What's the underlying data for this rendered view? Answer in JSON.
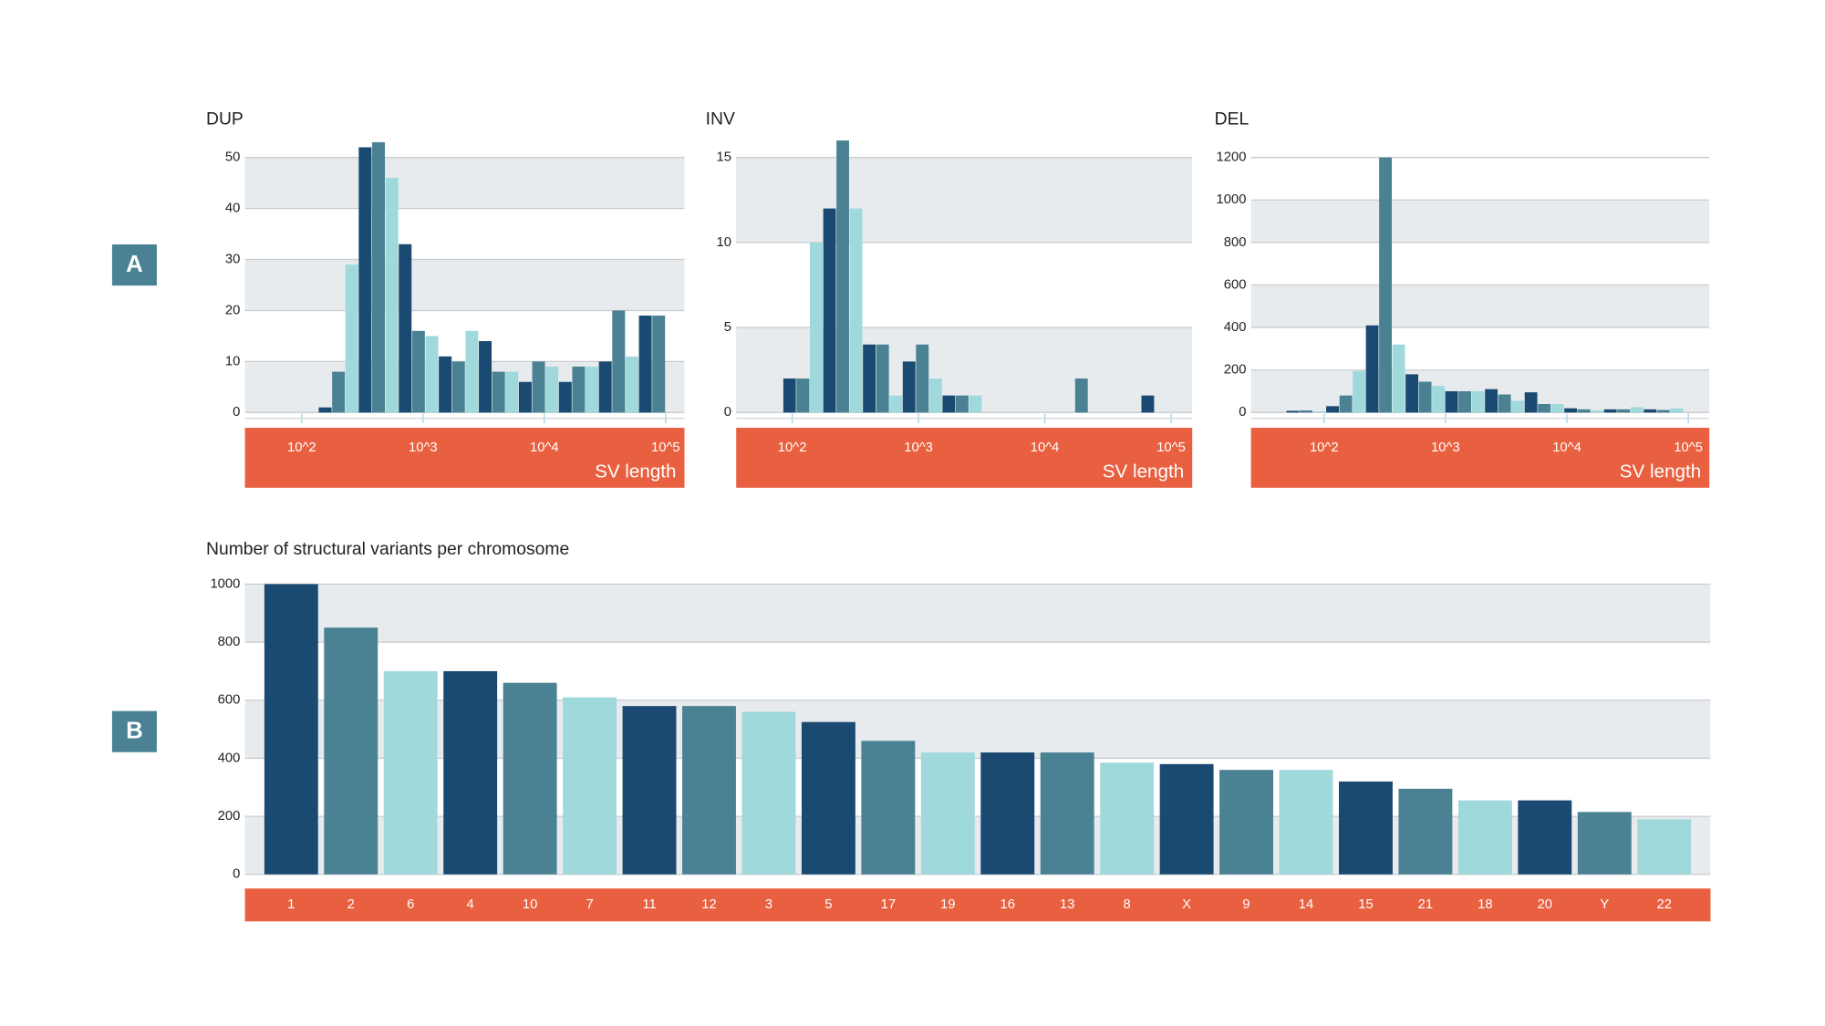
{
  "panels": [
    "A",
    "B"
  ],
  "chart_data": [
    {
      "type": "histogram",
      "title": "DUP",
      "xlabel": "SV length",
      "xscale": "log",
      "bins": [
        138,
        178,
        229,
        295,
        380,
        490,
        631,
        813,
        1047,
        1349,
        1738,
        2239,
        2884,
        3715,
        4786,
        6166,
        7943,
        10233,
        13183,
        16982,
        21878,
        28184,
        36308,
        46774,
        60256,
        77625,
        100000
      ],
      "counts": [
        1,
        8,
        29,
        52,
        53,
        46,
        33,
        16,
        15,
        11,
        10,
        16,
        14,
        8,
        8,
        6,
        10,
        9,
        6,
        9,
        9,
        10,
        20,
        11,
        19,
        19
      ],
      "colors": [
        "#1a4a72",
        "#4a8294",
        "#a0d9dc"
      ],
      "xlim": [
        34,
        143000
      ],
      "xticks": [
        {
          "value": 100,
          "label": "10^2"
        },
        {
          "value": 1000,
          "label": "10^3"
        },
        {
          "value": 10000,
          "label": "10^4"
        },
        {
          "value": 100000,
          "label": "10^5"
        }
      ],
      "ylim": [
        0,
        50
      ],
      "yticks": [
        0,
        10,
        20,
        30,
        40,
        50
      ],
      "grid": true
    },
    {
      "type": "histogram",
      "title": "INV",
      "xlabel": "SV length",
      "xscale": "log",
      "bins": [
        85,
        108,
        138,
        176,
        224,
        285,
        363,
        462,
        589,
        750,
        955,
        1216,
        1549,
        1972,
        2512,
        3199,
        4074,
        5188,
        6607,
        8414,
        10715,
        13646,
        17378,
        22131,
        28184,
        35892,
        45709,
        58210,
        74131
      ],
      "counts": [
        2,
        2,
        10,
        12,
        16,
        12,
        4,
        4,
        1,
        3,
        4,
        2,
        1,
        1,
        1,
        0,
        0,
        0,
        0,
        0,
        0,
        0,
        2,
        0,
        0,
        0,
        0,
        1
      ],
      "colors": [
        "#1a4a72",
        "#4a8294",
        "#a0d9dc"
      ],
      "xlim": [
        36,
        147000
      ],
      "xticks": [
        {
          "value": 100,
          "label": "10^2"
        },
        {
          "value": 1000,
          "label": "10^3"
        },
        {
          "value": 10000,
          "label": "10^4"
        },
        {
          "value": 100000,
          "label": "10^5"
        }
      ],
      "ylim": [
        0,
        15
      ],
      "yticks": [
        0,
        5,
        10,
        15
      ],
      "grid": true
    },
    {
      "type": "histogram",
      "title": "DEL",
      "xlabel": "SV length",
      "xscale": "log",
      "bins": [
        49,
        63,
        81,
        104,
        134,
        172,
        221,
        284,
        365,
        469,
        603,
        775,
        995,
        1279,
        1644,
        2114,
        2716,
        3491,
        4488,
        5768,
        7413,
        9528,
        12246,
        15740,
        20230,
        26002,
        33420,
        42954,
        55208,
        70958,
        91201
      ],
      "counts": [
        8,
        10,
        5,
        30,
        80,
        195,
        410,
        1200,
        320,
        180,
        145,
        125,
        100,
        100,
        100,
        110,
        85,
        55,
        95,
        40,
        40,
        20,
        15,
        10,
        15,
        15,
        25,
        15,
        12,
        20
      ],
      "colors": [
        "#1a4a72",
        "#4a8294",
        "#a0d9dc"
      ],
      "xlim": [
        25,
        149000
      ],
      "xticks": [
        {
          "value": 100,
          "label": "10^2"
        },
        {
          "value": 1000,
          "label": "10^3"
        },
        {
          "value": 10000,
          "label": "10^4"
        },
        {
          "value": 100000,
          "label": "10^5"
        }
      ],
      "ylim": [
        0,
        1200
      ],
      "yticks": [
        0,
        200,
        400,
        600,
        800,
        1000,
        1200
      ],
      "grid": true
    },
    {
      "type": "bar",
      "title": "Number of structural variants per chromosome",
      "categories": [
        "1",
        "2",
        "6",
        "4",
        "10",
        "7",
        "11",
        "12",
        "3",
        "5",
        "17",
        "19",
        "16",
        "13",
        "8",
        "X",
        "9",
        "14",
        "15",
        "21",
        "18",
        "20",
        "Y",
        "22"
      ],
      "values": [
        1000,
        850,
        700,
        700,
        660,
        610,
        580,
        580,
        560,
        525,
        460,
        420,
        420,
        420,
        385,
        380,
        360,
        360,
        320,
        295,
        255,
        255,
        215,
        190
      ],
      "colors": [
        "#1a4a72",
        "#4a8294",
        "#a0d9dc"
      ],
      "ylim": [
        0,
        1000
      ],
      "yticks": [
        0,
        200,
        400,
        600,
        800,
        1000
      ],
      "grid": true
    }
  ]
}
